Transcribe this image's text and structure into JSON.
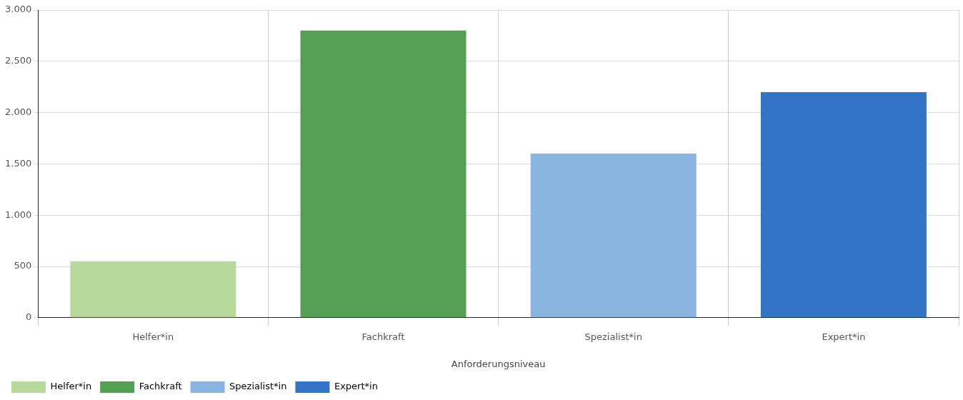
{
  "chart_data": {
    "type": "bar",
    "xlabel": "Anforderungsniveau",
    "categories": [
      "Helfer*in",
      "Fachkraft",
      "Spezialist*in",
      "Expert*in"
    ],
    "series": [
      {
        "name": "Helfer*in",
        "color": "#b7d99b",
        "values": [
          550,
          null,
          null,
          null
        ]
      },
      {
        "name": "Fachkraft",
        "color": "#55a055",
        "values": [
          null,
          2800,
          null,
          null
        ]
      },
      {
        "name": "Spezialist*in",
        "color": "#8bb5e1",
        "values": [
          null,
          null,
          1600,
          null
        ]
      },
      {
        "name": "Expert*in",
        "color": "#3374c7",
        "values": [
          null,
          null,
          null,
          2200
        ]
      }
    ],
    "ylim": [
      0,
      3000
    ],
    "yticks": [
      0,
      {
        "value": 500,
        "label": "500"
      },
      {
        "value": 1000,
        "label": "1.000"
      },
      {
        "value": 1500,
        "label": "1.500"
      },
      {
        "value": 2000,
        "label": "2.000"
      },
      {
        "value": 2500,
        "label": "2.500"
      },
      {
        "value": 3000,
        "label": "3.000"
      }
    ],
    "grid": true,
    "legend": "bottom left"
  }
}
